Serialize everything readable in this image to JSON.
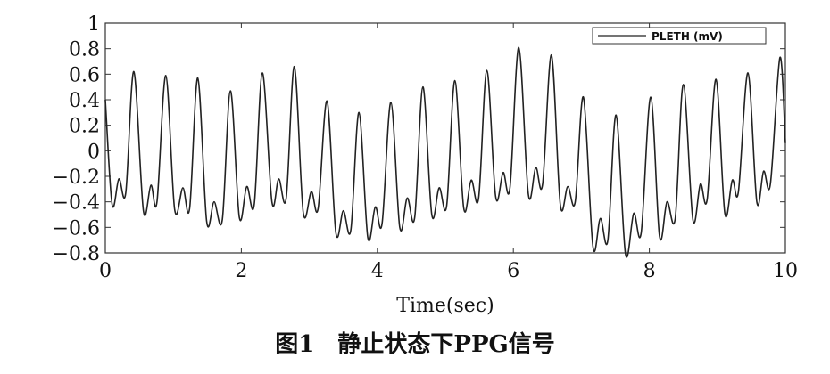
{
  "chart_data": {
    "type": "line",
    "title": "",
    "xlabel": "Time(sec)",
    "ylabel": "",
    "xlim": [
      0,
      10
    ],
    "ylim": [
      -0.8,
      1.0
    ],
    "xticks": [
      0,
      2,
      4,
      6,
      8,
      10
    ],
    "xtick_labels": [
      "0",
      "2",
      "4",
      "6",
      "8",
      "10"
    ],
    "yticks": [
      1,
      0.8,
      0.6,
      0.4,
      0.2,
      0,
      -0.2,
      -0.4,
      -0.6,
      -0.8
    ],
    "ytick_labels": [
      "1",
      "0.8",
      "0.6",
      "0.4",
      "0.2",
      "0",
      "−0.2",
      "−0.4",
      "−0.6",
      "−0.8"
    ],
    "grid": false,
    "legend": {
      "position": "top-right",
      "entries": [
        "PLETH (mV)"
      ]
    },
    "series": [
      {
        "name": "PLETH (mV)",
        "color": "#222222",
        "x": [
          0.0,
          0.1,
          0.2,
          0.3,
          0.42,
          0.56,
          0.67,
          0.76,
          0.89,
          1.02,
          1.14,
          1.24,
          1.36,
          1.49,
          1.6,
          1.72,
          1.84,
          1.97,
          2.08,
          2.19,
          2.31,
          2.45,
          2.55,
          2.66,
          2.78,
          2.91,
          3.03,
          3.13,
          3.26,
          3.39,
          3.5,
          3.61,
          3.73,
          3.86,
          3.97,
          4.07,
          4.2,
          4.33,
          4.44,
          4.55,
          4.67,
          4.8,
          4.91,
          5.02,
          5.14,
          5.27,
          5.38,
          5.49,
          5.61,
          5.74,
          5.85,
          5.95,
          6.08,
          6.22,
          6.33,
          6.43,
          6.56,
          6.69,
          6.8,
          6.91,
          7.03,
          7.17,
          7.28,
          7.39,
          7.51,
          7.65,
          7.77,
          7.88,
          8.02,
          8.15,
          8.26,
          8.38,
          8.5,
          8.64,
          8.75,
          8.85,
          8.98,
          9.11,
          9.22,
          9.31,
          9.45,
          9.58,
          9.68,
          9.78,
          9.92,
          10.0
        ],
        "y": [
          0.4,
          -0.42,
          -0.22,
          -0.33,
          0.62,
          -0.47,
          -0.27,
          -0.4,
          0.59,
          -0.46,
          -0.29,
          -0.45,
          0.57,
          -0.55,
          -0.4,
          -0.54,
          0.47,
          -0.52,
          -0.28,
          -0.42,
          0.61,
          -0.4,
          -0.22,
          -0.37,
          0.66,
          -0.48,
          -0.32,
          -0.45,
          0.39,
          -0.64,
          -0.47,
          -0.62,
          0.3,
          -0.68,
          -0.44,
          -0.57,
          0.38,
          -0.6,
          -0.37,
          -0.52,
          0.5,
          -0.5,
          -0.29,
          -0.43,
          0.55,
          -0.45,
          -0.23,
          -0.37,
          0.63,
          -0.36,
          -0.17,
          -0.29,
          0.81,
          -0.34,
          -0.13,
          -0.26,
          0.75,
          -0.42,
          -0.28,
          -0.4,
          0.42,
          -0.75,
          -0.53,
          -0.7,
          0.28,
          -0.81,
          -0.49,
          -0.64,
          0.42,
          -0.67,
          -0.4,
          -0.53,
          0.52,
          -0.54,
          -0.26,
          -0.38,
          0.56,
          -0.49,
          -0.23,
          -0.32,
          0.61,
          -0.4,
          -0.16,
          -0.26,
          0.73,
          0.06
        ]
      }
    ]
  },
  "caption": "图1　静止状态下PPG信号"
}
